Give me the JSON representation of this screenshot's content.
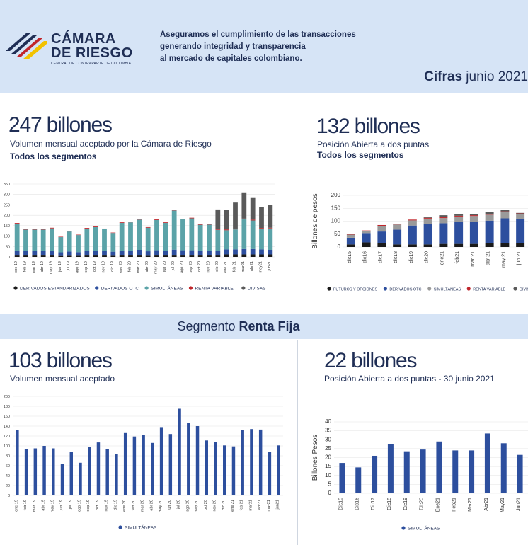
{
  "header": {
    "brand_line1": "CÁMARA",
    "brand_line2": "DE RIESGO",
    "brand_sub": "CENTRAL DE CONTRAPARTE DE COLOMBIA",
    "tagline_1": "Aseguramos el cumplimiento de las transacciones",
    "tagline_2": "generando integridad y transparencia",
    "tagline_3": "al mercado de capitales colombiano.",
    "cifras_bold": "Cifras",
    "cifras_rest": " junio 2021"
  },
  "panels": {
    "vol_total": {
      "big": "247 billones",
      "sub": "Volumen mensual aceptado por la Cámara de Riesgo",
      "subb": "Todos los segmentos"
    },
    "pos_total": {
      "big": "132 billones",
      "sub": "Posición Abierta a dos puntas",
      "subb": "Todos los segmentos"
    },
    "band": {
      "prefix": "Segmento ",
      "bold": "Renta Fija"
    },
    "vol_rf": {
      "big": "103 billones",
      "sub": "Volumen mensual aceptado"
    },
    "pos_rf": {
      "big": "22 billones",
      "sub": "Posición Abierta a dos puntas -  30 junio 2021"
    }
  },
  "chart_data": [
    {
      "type": "bar",
      "stacked": true,
      "categories": [
        "ene 19",
        "feb 19",
        "mar 19",
        "abr 19",
        "may 19",
        "jun 19",
        "jul 19",
        "ago 19",
        "sep 19",
        "oct 19",
        "nov 19",
        "dic 19",
        "ene 20",
        "feb 20",
        "mar 20",
        "abr 20",
        "may 20",
        "jun 20",
        "jul 20",
        "ago 20",
        "sep 20",
        "oct 20",
        "nov 20",
        "dic 20",
        "ene 21",
        "feb 21",
        "mar21",
        "abr21",
        "may21",
        "jun21"
      ],
      "ylim": [
        0,
        350
      ],
      "yticks": [
        0,
        50,
        100,
        150,
        200,
        250,
        300,
        350
      ],
      "series": [
        {
          "name": "DERIVADOS ESTANDARIZADOS",
          "color": "#1a1a1a",
          "values": [
            10,
            10,
            10,
            10,
            10,
            8,
            9,
            9,
            10,
            10,
            10,
            9,
            10,
            10,
            10,
            9,
            10,
            10,
            10,
            10,
            10,
            10,
            10,
            10,
            12,
            12,
            12,
            12,
            12,
            12
          ]
        },
        {
          "name": "DERIVADOS OTC",
          "color": "#2d4f9e",
          "values": [
            20,
            18,
            18,
            18,
            19,
            14,
            17,
            14,
            18,
            18,
            18,
            16,
            20,
            20,
            24,
            18,
            22,
            20,
            25,
            22,
            22,
            20,
            20,
            20,
            24,
            24,
            26,
            26,
            24,
            22
          ]
        },
        {
          "name": "SIMULTÁNEAS",
          "color": "#5ba3a8",
          "values": [
            130,
            103,
            103,
            103,
            108,
            73,
            96,
            82,
            108,
            115,
            105,
            90,
            133,
            136,
            145,
            113,
            145,
            133,
            188,
            148,
            153,
            124,
            125,
            100,
            92,
            96,
            142,
            137,
            100,
            103
          ]
        },
        {
          "name": "RENTA VARIABLE",
          "color": "#c0262c",
          "values": [
            3,
            3,
            3,
            3,
            3,
            2,
            3,
            2,
            3,
            3,
            3,
            2,
            3,
            3,
            3,
            3,
            3,
            3,
            3,
            3,
            3,
            3,
            3,
            3,
            4,
            4,
            4,
            4,
            3,
            3
          ]
        },
        {
          "name": "DIVISAS",
          "color": "#5a5a5a",
          "values": [
            0,
            0,
            0,
            0,
            0,
            0,
            0,
            0,
            0,
            0,
            0,
            0,
            0,
            0,
            0,
            0,
            0,
            0,
            0,
            0,
            0,
            0,
            0,
            95,
            95,
            125,
            126,
            104,
            101,
            108
          ]
        }
      ]
    },
    {
      "type": "bar",
      "stacked": true,
      "ylabel": "Billones de pesos",
      "categories": [
        "dic15",
        "dic16",
        "dic17",
        "dic18",
        "dic19",
        "dic20",
        "ene21",
        "feb21",
        "mar 21",
        "abr 21",
        "may 21",
        "jun 21"
      ],
      "ylim": [
        0,
        200
      ],
      "yticks": [
        0,
        50,
        100,
        150,
        200
      ],
      "series": [
        {
          "name": "FUTUROS Y OPCIONES",
          "color": "#1a1a1a",
          "values": [
            10,
            18,
            15,
            10,
            10,
            10,
            12,
            12,
            12,
            14,
            14,
            14
          ]
        },
        {
          "name": "DERIVADOS OTC",
          "color": "#2d4f9e",
          "values": [
            26,
            36,
            45,
            57,
            73,
            78,
            80,
            84,
            86,
            88,
            97,
            95
          ]
        },
        {
          "name": "SIMULTÁNEAS",
          "color": "#9a9a9a",
          "values": [
            12,
            8,
            22,
            20,
            20,
            22,
            20,
            22,
            22,
            23,
            24,
            18
          ]
        },
        {
          "name": "RENTA VARIABLE",
          "color": "#c0262c",
          "values": [
            2,
            2,
            3,
            3,
            3,
            3,
            3,
            3,
            3,
            3,
            3,
            3
          ]
        },
        {
          "name": "DIVISAS",
          "color": "#5a5a5a",
          "values": [
            0,
            0,
            0,
            0,
            0,
            3,
            8,
            5,
            5,
            8,
            5,
            2
          ]
        }
      ]
    },
    {
      "type": "bar",
      "categories": [
        "ene 19",
        "feb 19",
        "mar 19",
        "abr 19",
        "may 19",
        "jun 19",
        "jul 19",
        "ago 19",
        "sep 19",
        "oct 19",
        "nov 19",
        "dic 19",
        "ene 20",
        "feb 20",
        "mar 20",
        "abr 20",
        "may 20",
        "jun 20",
        "jul 20",
        "ago 20",
        "sep 20",
        "oct 20",
        "nov 20",
        "dic 20",
        "ene 21",
        "feb 21",
        "mar21",
        "abr21",
        "may21",
        "jun21"
      ],
      "ylim": [
        0,
        200
      ],
      "yticks": [
        0,
        20,
        40,
        60,
        80,
        100,
        120,
        140,
        160,
        180,
        200
      ],
      "series": [
        {
          "name": "SIMULTÁNEAS",
          "color": "#2d4f9e",
          "values": [
            132,
            93,
            95,
            100,
            95,
            63,
            88,
            66,
            98,
            107,
            94,
            84,
            126,
            119,
            122,
            106,
            138,
            124,
            175,
            146,
            140,
            111,
            108,
            101,
            99,
            132,
            134,
            133,
            88,
            101
          ]
        }
      ]
    },
    {
      "type": "bar",
      "ylabel": "Billones Pesos",
      "categories": [
        "Dic15",
        "Dic16",
        "Dic17",
        "Dic18",
        "Dic19",
        "Dic20",
        "Ene21",
        "Feb21",
        "Mar21",
        "Abr21",
        "May21",
        "Jun21"
      ],
      "ylim": [
        0,
        40
      ],
      "yticks": [
        0,
        5,
        10,
        15,
        20,
        25,
        30,
        35,
        40
      ],
      "series": [
        {
          "name": "SIMULTÁNEAS",
          "color": "#2d4f9e",
          "values": [
            17,
            14.5,
            21,
            27.5,
            23.5,
            24.5,
            29,
            24,
            24,
            33.5,
            28,
            21.5
          ]
        }
      ]
    }
  ]
}
